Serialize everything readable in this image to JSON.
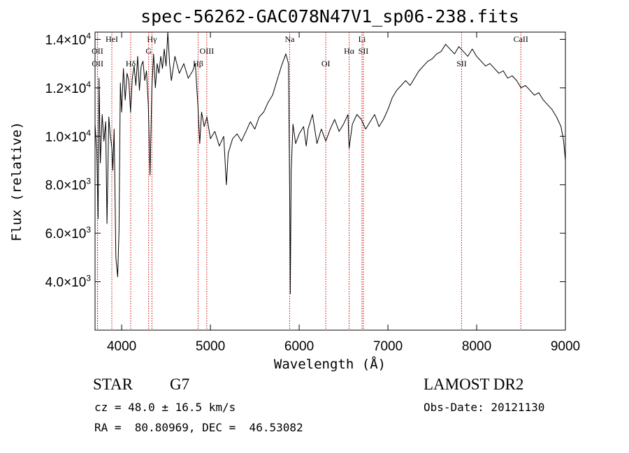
{
  "chart_data": {
    "type": "line",
    "title": "spec-56262-GAC078N47V1_sp06-238.fits",
    "xlabel": "Wavelength (Å)",
    "ylabel": "Flux (relative)",
    "xlim": [
      3700,
      9000
    ],
    "ylim": [
      2000,
      14300
    ],
    "x_ticks": [
      4000,
      5000,
      6000,
      7000,
      8000,
      9000
    ],
    "y_ticks": [
      {
        "value": 4000,
        "mant": "4.0",
        "exp": "3"
      },
      {
        "value": 6000,
        "mant": "6.0",
        "exp": "3"
      },
      {
        "value": 8000,
        "mant": "8.0",
        "exp": "3"
      },
      {
        "value": 10000,
        "mant": "1.0",
        "exp": "4"
      },
      {
        "value": 12000,
        "mant": "1.2",
        "exp": "4"
      },
      {
        "value": 14000,
        "mant": "1.4",
        "exp": "4"
      }
    ],
    "line_color": "#000000",
    "marker_color": "#cc0000",
    "series": [
      {
        "points": [
          [
            3700,
            10500
          ],
          [
            3720,
            9400
          ],
          [
            3735,
            6600
          ],
          [
            3745,
            12400
          ],
          [
            3760,
            8900
          ],
          [
            3780,
            10900
          ],
          [
            3800,
            9800
          ],
          [
            3820,
            10600
          ],
          [
            3835,
            6400
          ],
          [
            3855,
            10800
          ],
          [
            3870,
            10100
          ],
          [
            3890,
            9500
          ],
          [
            3900,
            8600
          ],
          [
            3915,
            10300
          ],
          [
            3935,
            5000
          ],
          [
            3955,
            4200
          ],
          [
            3970,
            6100
          ],
          [
            3985,
            12200
          ],
          [
            4000,
            11000
          ],
          [
            4020,
            12800
          ],
          [
            4040,
            11500
          ],
          [
            4060,
            12600
          ],
          [
            4080,
            12300
          ],
          [
            4100,
            11000
          ],
          [
            4120,
            12400
          ],
          [
            4140,
            12900
          ],
          [
            4160,
            12100
          ],
          [
            4180,
            13300
          ],
          [
            4200,
            11900
          ],
          [
            4220,
            12900
          ],
          [
            4240,
            13100
          ],
          [
            4260,
            12300
          ],
          [
            4280,
            12700
          ],
          [
            4300,
            11300
          ],
          [
            4320,
            8400
          ],
          [
            4340,
            12000
          ],
          [
            4360,
            13400
          ],
          [
            4380,
            12000
          ],
          [
            4400,
            13000
          ],
          [
            4420,
            12600
          ],
          [
            4440,
            13300
          ],
          [
            4460,
            12800
          ],
          [
            4480,
            13600
          ],
          [
            4500,
            12900
          ],
          [
            4520,
            14300
          ],
          [
            4540,
            13000
          ],
          [
            4560,
            12300
          ],
          [
            4600,
            13300
          ],
          [
            4650,
            12600
          ],
          [
            4700,
            13000
          ],
          [
            4750,
            12400
          ],
          [
            4800,
            12700
          ],
          [
            4830,
            13000
          ],
          [
            4860,
            11200
          ],
          [
            4880,
            9700
          ],
          [
            4900,
            11000
          ],
          [
            4930,
            10400
          ],
          [
            4960,
            10800
          ],
          [
            5000,
            9900
          ],
          [
            5050,
            10200
          ],
          [
            5100,
            9600
          ],
          [
            5150,
            10000
          ],
          [
            5180,
            8000
          ],
          [
            5200,
            9300
          ],
          [
            5250,
            9900
          ],
          [
            5300,
            10100
          ],
          [
            5350,
            9800
          ],
          [
            5400,
            10200
          ],
          [
            5450,
            10600
          ],
          [
            5500,
            10300
          ],
          [
            5550,
            10800
          ],
          [
            5600,
            11000
          ],
          [
            5650,
            11400
          ],
          [
            5700,
            11700
          ],
          [
            5750,
            12300
          ],
          [
            5800,
            12900
          ],
          [
            5850,
            13400
          ],
          [
            5880,
            13000
          ],
          [
            5895,
            7000
          ],
          [
            5900,
            3500
          ],
          [
            5910,
            8500
          ],
          [
            5930,
            10500
          ],
          [
            5960,
            9700
          ],
          [
            6000,
            10100
          ],
          [
            6050,
            10400
          ],
          [
            6080,
            9600
          ],
          [
            6100,
            10300
          ],
          [
            6150,
            10900
          ],
          [
            6200,
            9700
          ],
          [
            6250,
            10300
          ],
          [
            6300,
            9800
          ],
          [
            6350,
            10300
          ],
          [
            6400,
            10700
          ],
          [
            6450,
            10200
          ],
          [
            6500,
            10500
          ],
          [
            6550,
            10900
          ],
          [
            6563,
            9500
          ],
          [
            6600,
            10500
          ],
          [
            6650,
            10900
          ],
          [
            6700,
            10700
          ],
          [
            6750,
            10300
          ],
          [
            6800,
            10600
          ],
          [
            6850,
            10900
          ],
          [
            6900,
            10400
          ],
          [
            6950,
            10700
          ],
          [
            7000,
            11100
          ],
          [
            7050,
            11600
          ],
          [
            7100,
            11900
          ],
          [
            7150,
            12100
          ],
          [
            7200,
            12300
          ],
          [
            7250,
            12100
          ],
          [
            7300,
            12400
          ],
          [
            7350,
            12700
          ],
          [
            7400,
            12900
          ],
          [
            7450,
            13100
          ],
          [
            7500,
            13200
          ],
          [
            7550,
            13400
          ],
          [
            7600,
            13500
          ],
          [
            7650,
            13800
          ],
          [
            7700,
            13600
          ],
          [
            7750,
            13400
          ],
          [
            7800,
            13700
          ],
          [
            7850,
            13500
          ],
          [
            7900,
            13300
          ],
          [
            7950,
            13600
          ],
          [
            8000,
            13300
          ],
          [
            8050,
            13100
          ],
          [
            8100,
            12900
          ],
          [
            8150,
            13000
          ],
          [
            8200,
            12800
          ],
          [
            8250,
            12600
          ],
          [
            8300,
            12700
          ],
          [
            8350,
            12400
          ],
          [
            8400,
            12500
          ],
          [
            8450,
            12300
          ],
          [
            8500,
            12000
          ],
          [
            8550,
            12100
          ],
          [
            8600,
            11900
          ],
          [
            8650,
            11700
          ],
          [
            8700,
            11800
          ],
          [
            8750,
            11500
          ],
          [
            8800,
            11300
          ],
          [
            8850,
            11100
          ],
          [
            8900,
            10800
          ],
          [
            8950,
            10400
          ],
          [
            8980,
            9800
          ],
          [
            9000,
            9000
          ]
        ]
      }
    ],
    "line_markers": [
      {
        "label": "OII",
        "x": 3727,
        "tier": 1
      },
      {
        "label": "OII",
        "x": 3729,
        "tier": 2
      },
      {
        "label": "HeI",
        "x": 3889,
        "tier": 0
      },
      {
        "label": "Hδ",
        "x": 4102,
        "tier": 2
      },
      {
        "label": "Hγ",
        "x": 4341,
        "tier": 0
      },
      {
        "label": "G",
        "x": 4304,
        "tier": 1
      },
      {
        "label": "Hβ",
        "x": 4861,
        "tier": 2
      },
      {
        "label": "OIII",
        "x": 4959,
        "tier": 1
      },
      {
        "label": "Na",
        "x": 5893,
        "tier": 0
      },
      {
        "label": "OI",
        "x": 6300,
        "tier": 2
      },
      {
        "label": "Hα",
        "x": 6563,
        "tier": 1
      },
      {
        "label": "Li",
        "x": 6708,
        "tier": 0
      },
      {
        "label": "SII",
        "x": 6724,
        "tier": 1
      },
      {
        "label": "SII",
        "x": 7830,
        "tier": 2
      },
      {
        "label": "CaII",
        "x": 8498,
        "tier": 0
      }
    ]
  },
  "info": {
    "object_class": "STAR",
    "subclass": "G7",
    "survey": "LAMOST DR2",
    "cz": "cz = 48.0 ± 16.5 km/s",
    "obs_date": "Obs-Date: 20121130",
    "coords": "RA =  80.80969, DEC =  46.53082"
  }
}
